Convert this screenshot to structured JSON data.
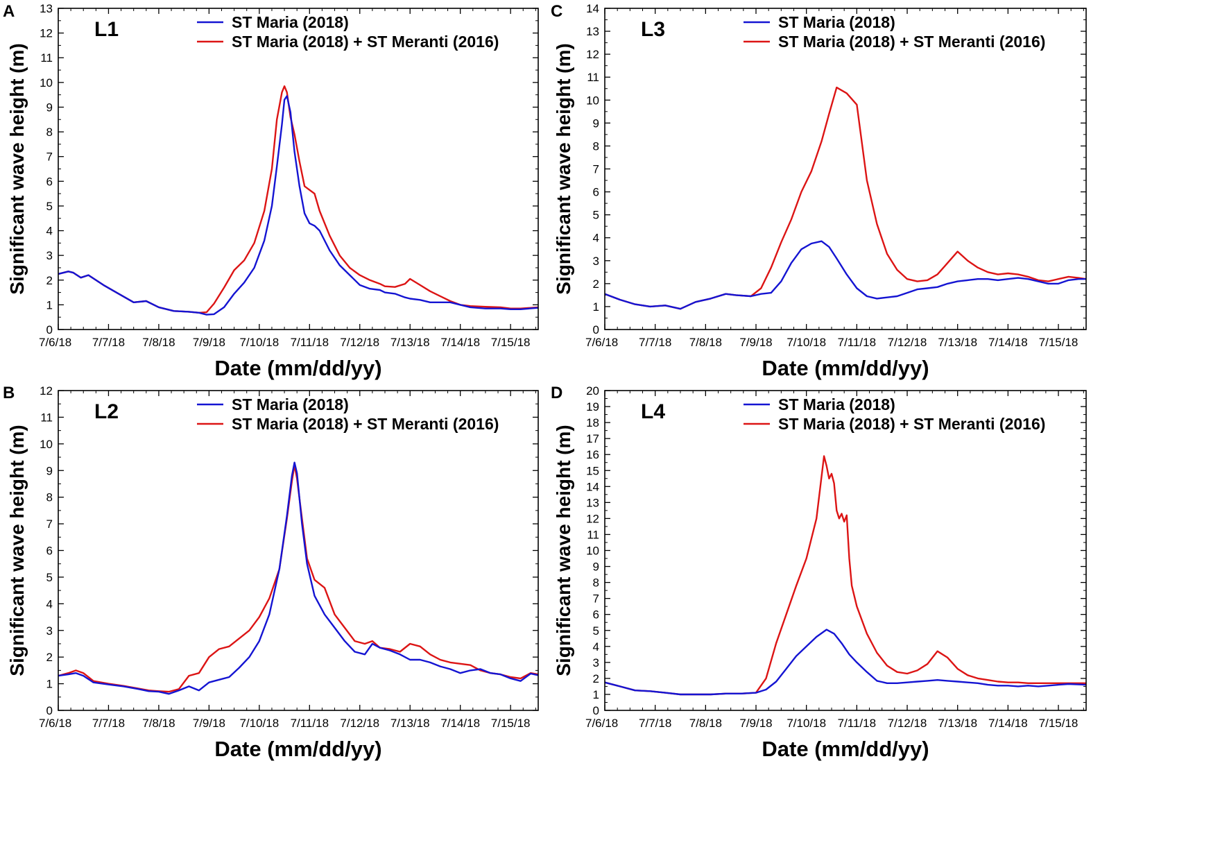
{
  "figure": {
    "colors": {
      "series1": "#1414d2",
      "series2": "#dc1414",
      "axis": "#000000"
    }
  },
  "chart_data": [
    {
      "panel": "A",
      "site": "L1",
      "type": "line",
      "xlabel": "Date (mm/dd/yy)",
      "ylabel": "Significant wave height (m)",
      "xlim": [
        0,
        9.55
      ],
      "ylim": [
        0,
        13
      ],
      "yticks": [
        0,
        1,
        2,
        3,
        4,
        5,
        6,
        7,
        8,
        9,
        10,
        11,
        12,
        13
      ],
      "x_tick_labels": [
        "7/6/18",
        "7/7/18",
        "7/8/18",
        "7/9/18",
        "7/10/18",
        "7/11/18",
        "7/12/18",
        "7/13/18",
        "7/14/18",
        "7/15/18"
      ],
      "legend": [
        "ST Maria (2018)",
        "ST Maria (2018) + ST  Meranti (2016)"
      ],
      "series": [
        {
          "name": "ST Maria (2018)",
          "x": [
            0,
            0.2,
            0.3,
            0.45,
            0.6,
            0.9,
            1.2,
            1.5,
            1.75,
            2.0,
            2.3,
            2.6,
            2.8,
            2.95,
            3.1,
            3.3,
            3.5,
            3.7,
            3.9,
            4.1,
            4.25,
            4.35,
            4.45,
            4.5,
            4.55,
            4.62,
            4.7,
            4.8,
            4.9,
            5.0,
            5.1,
            5.2,
            5.4,
            5.6,
            5.8,
            6.0,
            6.2,
            6.4,
            6.5,
            6.7,
            6.9,
            7.0,
            7.2,
            7.4,
            7.6,
            7.8,
            8.0,
            8.2,
            8.5,
            8.8,
            9.0,
            9.2,
            9.55
          ],
          "values": [
            2.25,
            2.35,
            2.3,
            2.1,
            2.2,
            1.8,
            1.45,
            1.1,
            1.15,
            0.9,
            0.75,
            0.72,
            0.68,
            0.6,
            0.62,
            0.9,
            1.45,
            1.9,
            2.5,
            3.6,
            5.0,
            6.6,
            8.3,
            9.3,
            9.45,
            8.8,
            7.2,
            5.8,
            4.7,
            4.3,
            4.2,
            4.0,
            3.2,
            2.6,
            2.2,
            1.8,
            1.65,
            1.6,
            1.5,
            1.45,
            1.3,
            1.25,
            1.2,
            1.1,
            1.1,
            1.1,
            1.0,
            0.9,
            0.85,
            0.85,
            0.82,
            0.82,
            0.88
          ]
        },
        {
          "name": "ST Maria (2018) + ST  Meranti (2016)",
          "x": [
            0,
            0.2,
            0.3,
            0.45,
            0.6,
            0.9,
            1.2,
            1.5,
            1.75,
            2.0,
            2.3,
            2.6,
            2.8,
            2.95,
            3.1,
            3.3,
            3.5,
            3.7,
            3.9,
            4.1,
            4.25,
            4.35,
            4.45,
            4.5,
            4.55,
            4.62,
            4.7,
            4.8,
            4.9,
            5.0,
            5.1,
            5.2,
            5.4,
            5.6,
            5.8,
            6.0,
            6.2,
            6.4,
            6.5,
            6.7,
            6.9,
            7.0,
            7.2,
            7.4,
            7.6,
            7.8,
            8.0,
            8.2,
            8.5,
            8.8,
            9.0,
            9.2,
            9.55
          ],
          "values": [
            2.25,
            2.35,
            2.3,
            2.1,
            2.2,
            1.8,
            1.45,
            1.1,
            1.15,
            0.9,
            0.75,
            0.72,
            0.68,
            0.7,
            1.05,
            1.7,
            2.4,
            2.8,
            3.5,
            4.8,
            6.5,
            8.5,
            9.6,
            9.85,
            9.6,
            8.6,
            7.9,
            6.8,
            5.8,
            5.65,
            5.5,
            4.8,
            3.8,
            3.0,
            2.5,
            2.2,
            2.0,
            1.85,
            1.75,
            1.72,
            1.85,
            2.05,
            1.8,
            1.55,
            1.35,
            1.15,
            1.0,
            0.95,
            0.92,
            0.9,
            0.85,
            0.85,
            0.9
          ]
        }
      ]
    },
    {
      "panel": "B",
      "site": "L2",
      "type": "line",
      "xlabel": "Date (mm/dd/yy)",
      "ylabel": "Significant wave height (m)",
      "xlim": [
        0,
        9.55
      ],
      "ylim": [
        0,
        12
      ],
      "yticks": [
        0,
        1,
        2,
        3,
        4,
        5,
        6,
        7,
        8,
        9,
        10,
        11,
        12
      ],
      "x_tick_labels": [
        "7/6/18",
        "7/7/18",
        "7/8/18",
        "7/9/18",
        "7/10/18",
        "7/11/18",
        "7/12/18",
        "7/13/18",
        "7/14/18",
        "7/15/18"
      ],
      "legend": [
        "ST Maria (2018)",
        "ST Maria (2018) + ST  Meranti (2016)"
      ],
      "series": [
        {
          "name": "ST Maria (2018)",
          "x": [
            0,
            0.2,
            0.35,
            0.5,
            0.7,
            1.0,
            1.3,
            1.6,
            1.8,
            2.0,
            2.2,
            2.4,
            2.6,
            2.8,
            3.0,
            3.2,
            3.4,
            3.6,
            3.8,
            4.0,
            4.2,
            4.4,
            4.55,
            4.65,
            4.7,
            4.75,
            4.85,
            4.95,
            5.1,
            5.3,
            5.5,
            5.7,
            5.9,
            6.1,
            6.25,
            6.4,
            6.6,
            6.8,
            7.0,
            7.2,
            7.4,
            7.6,
            7.8,
            8.0,
            8.2,
            8.4,
            8.6,
            8.8,
            9.0,
            9.2,
            9.4,
            9.55
          ],
          "values": [
            1.3,
            1.35,
            1.4,
            1.3,
            1.05,
            0.97,
            0.9,
            0.8,
            0.72,
            0.7,
            0.62,
            0.75,
            0.9,
            0.75,
            1.05,
            1.15,
            1.25,
            1.6,
            2.0,
            2.6,
            3.6,
            5.3,
            7.3,
            8.8,
            9.3,
            8.9,
            7.0,
            5.5,
            4.3,
            3.6,
            3.1,
            2.6,
            2.2,
            2.1,
            2.5,
            2.35,
            2.25,
            2.1,
            1.9,
            1.9,
            1.8,
            1.65,
            1.55,
            1.4,
            1.5,
            1.55,
            1.4,
            1.35,
            1.2,
            1.1,
            1.38,
            1.32
          ]
        },
        {
          "name": "ST Maria (2018) + ST  Meranti (2016)",
          "x": [
            0,
            0.2,
            0.35,
            0.5,
            0.7,
            1.0,
            1.3,
            1.6,
            1.8,
            2.0,
            2.2,
            2.4,
            2.6,
            2.8,
            3.0,
            3.2,
            3.4,
            3.6,
            3.8,
            4.0,
            4.2,
            4.4,
            4.55,
            4.65,
            4.7,
            4.75,
            4.85,
            4.95,
            5.1,
            5.3,
            5.5,
            5.7,
            5.9,
            6.1,
            6.25,
            6.4,
            6.6,
            6.8,
            7.0,
            7.2,
            7.4,
            7.6,
            7.8,
            8.0,
            8.2,
            8.4,
            8.6,
            8.8,
            9.0,
            9.2,
            9.4,
            9.55
          ],
          "values": [
            1.3,
            1.4,
            1.5,
            1.4,
            1.1,
            1.0,
            0.92,
            0.82,
            0.75,
            0.72,
            0.7,
            0.8,
            1.3,
            1.4,
            2.0,
            2.3,
            2.4,
            2.7,
            3.0,
            3.5,
            4.2,
            5.3,
            7.2,
            8.6,
            9.2,
            8.7,
            7.2,
            5.7,
            4.9,
            4.6,
            3.6,
            3.1,
            2.6,
            2.5,
            2.6,
            2.35,
            2.3,
            2.2,
            2.5,
            2.4,
            2.1,
            1.9,
            1.8,
            1.75,
            1.7,
            1.5,
            1.4,
            1.35,
            1.25,
            1.2,
            1.4,
            1.35
          ]
        }
      ]
    },
    {
      "panel": "C",
      "site": "L3",
      "type": "line",
      "xlabel": "Date (mm/dd/yy)",
      "ylabel": "Significant wave height (m)",
      "xlim": [
        0,
        9.55
      ],
      "ylim": [
        0,
        14
      ],
      "yticks": [
        0,
        1,
        2,
        3,
        4,
        5,
        6,
        7,
        8,
        9,
        10,
        11,
        12,
        13,
        14
      ],
      "x_tick_labels": [
        "7/6/18",
        "7/7/18",
        "7/8/18",
        "7/9/18",
        "7/10/18",
        "7/11/18",
        "7/12/18",
        "7/13/18",
        "7/14/18",
        "7/15/18"
      ],
      "legend": [
        "ST Maria (2018)",
        "ST Maria (2018) + ST  Meranti (2016)"
      ],
      "series": [
        {
          "name": "ST Maria (2018)",
          "x": [
            0,
            0.3,
            0.6,
            0.9,
            1.2,
            1.5,
            1.8,
            2.1,
            2.4,
            2.6,
            2.9,
            3.1,
            3.3,
            3.5,
            3.7,
            3.9,
            4.1,
            4.3,
            4.45,
            4.6,
            4.8,
            5.0,
            5.2,
            5.4,
            5.6,
            5.8,
            6.0,
            6.2,
            6.4,
            6.6,
            6.8,
            7.0,
            7.2,
            7.4,
            7.6,
            7.8,
            8.0,
            8.2,
            8.4,
            8.6,
            8.8,
            9.0,
            9.2,
            9.4,
            9.55
          ],
          "values": [
            1.55,
            1.3,
            1.1,
            1.0,
            1.05,
            0.9,
            1.2,
            1.35,
            1.55,
            1.5,
            1.45,
            1.55,
            1.6,
            2.1,
            2.9,
            3.5,
            3.75,
            3.85,
            3.6,
            3.1,
            2.4,
            1.8,
            1.45,
            1.35,
            1.4,
            1.45,
            1.6,
            1.75,
            1.8,
            1.85,
            2.0,
            2.1,
            2.15,
            2.2,
            2.2,
            2.15,
            2.2,
            2.25,
            2.2,
            2.1,
            2.0,
            2.0,
            2.15,
            2.2,
            2.2
          ]
        },
        {
          "name": "ST Maria (2018) + ST  Meranti (2016)",
          "x": [
            0,
            0.3,
            0.6,
            0.9,
            1.2,
            1.5,
            1.8,
            2.1,
            2.4,
            2.6,
            2.9,
            3.1,
            3.3,
            3.5,
            3.7,
            3.9,
            4.1,
            4.3,
            4.45,
            4.6,
            4.8,
            5.0,
            5.2,
            5.4,
            5.6,
            5.8,
            6.0,
            6.2,
            6.4,
            6.6,
            6.8,
            7.0,
            7.2,
            7.4,
            7.6,
            7.8,
            8.0,
            8.2,
            8.4,
            8.6,
            8.8,
            9.0,
            9.2,
            9.4,
            9.55
          ],
          "values": [
            1.55,
            1.3,
            1.1,
            1.0,
            1.05,
            0.9,
            1.2,
            1.35,
            1.55,
            1.5,
            1.45,
            1.8,
            2.7,
            3.8,
            4.8,
            6.0,
            6.9,
            8.2,
            9.4,
            10.55,
            10.3,
            9.8,
            6.5,
            4.6,
            3.3,
            2.6,
            2.2,
            2.1,
            2.15,
            2.4,
            2.9,
            3.4,
            3.0,
            2.7,
            2.5,
            2.4,
            2.45,
            2.4,
            2.3,
            2.15,
            2.1,
            2.2,
            2.3,
            2.25,
            2.2
          ]
        }
      ]
    },
    {
      "panel": "D",
      "site": "L4",
      "type": "line",
      "xlabel": "Date (mm/dd/yy)",
      "ylabel": "Significant wave height (m)",
      "xlim": [
        0,
        9.55
      ],
      "ylim": [
        0,
        20
      ],
      "yticks": [
        0,
        1,
        2,
        3,
        4,
        5,
        6,
        7,
        8,
        9,
        10,
        11,
        12,
        13,
        14,
        15,
        16,
        17,
        18,
        19,
        20
      ],
      "x_tick_labels": [
        "7/6/18",
        "7/7/18",
        "7/8/18",
        "7/9/18",
        "7/10/18",
        "7/11/18",
        "7/12/18",
        "7/13/18",
        "7/14/18",
        "7/15/18"
      ],
      "legend": [
        "ST Maria (2018)",
        "ST Maria (2018) + ST  Meranti (2016)"
      ],
      "series": [
        {
          "name": "ST Maria (2018)",
          "x": [
            0,
            0.3,
            0.6,
            0.9,
            1.2,
            1.5,
            1.8,
            2.1,
            2.4,
            2.7,
            3.0,
            3.2,
            3.4,
            3.6,
            3.8,
            4.0,
            4.2,
            4.4,
            4.55,
            4.7,
            4.85,
            5.0,
            5.2,
            5.4,
            5.6,
            5.8,
            6.0,
            6.2,
            6.4,
            6.6,
            6.8,
            7.0,
            7.2,
            7.4,
            7.6,
            7.8,
            8.0,
            8.2,
            8.4,
            8.6,
            8.8,
            9.0,
            9.2,
            9.55
          ],
          "values": [
            1.75,
            1.5,
            1.25,
            1.2,
            1.1,
            1.0,
            1.0,
            1.0,
            1.05,
            1.05,
            1.1,
            1.3,
            1.8,
            2.6,
            3.4,
            4.0,
            4.6,
            5.05,
            4.8,
            4.2,
            3.5,
            3.0,
            2.4,
            1.85,
            1.7,
            1.7,
            1.75,
            1.8,
            1.85,
            1.9,
            1.85,
            1.8,
            1.75,
            1.7,
            1.6,
            1.55,
            1.55,
            1.5,
            1.55,
            1.5,
            1.55,
            1.6,
            1.65,
            1.6
          ]
        },
        {
          "name": "ST Maria (2018) + ST  Meranti (2016)",
          "x": [
            0,
            0.3,
            0.6,
            0.9,
            1.2,
            1.5,
            1.8,
            2.1,
            2.4,
            2.7,
            3.0,
            3.2,
            3.4,
            3.6,
            3.8,
            4.0,
            4.2,
            4.35,
            4.4,
            4.45,
            4.5,
            4.55,
            4.6,
            4.65,
            4.7,
            4.75,
            4.8,
            4.85,
            4.9,
            5.0,
            5.2,
            5.4,
            5.6,
            5.8,
            6.0,
            6.2,
            6.4,
            6.6,
            6.8,
            7.0,
            7.2,
            7.4,
            7.6,
            7.8,
            8.0,
            8.2,
            8.4,
            8.6,
            8.8,
            9.0,
            9.2,
            9.55
          ],
          "values": [
            1.75,
            1.5,
            1.25,
            1.2,
            1.1,
            1.0,
            1.0,
            1.0,
            1.05,
            1.05,
            1.1,
            2.0,
            4.2,
            6.0,
            7.8,
            9.5,
            12.0,
            15.9,
            15.3,
            14.5,
            14.8,
            14.2,
            12.5,
            12.0,
            12.3,
            11.8,
            12.2,
            9.5,
            7.8,
            6.5,
            4.8,
            3.6,
            2.8,
            2.4,
            2.3,
            2.5,
            2.9,
            3.7,
            3.3,
            2.6,
            2.2,
            2.0,
            1.9,
            1.8,
            1.75,
            1.75,
            1.7,
            1.7,
            1.7,
            1.7,
            1.7,
            1.7
          ]
        }
      ]
    }
  ]
}
